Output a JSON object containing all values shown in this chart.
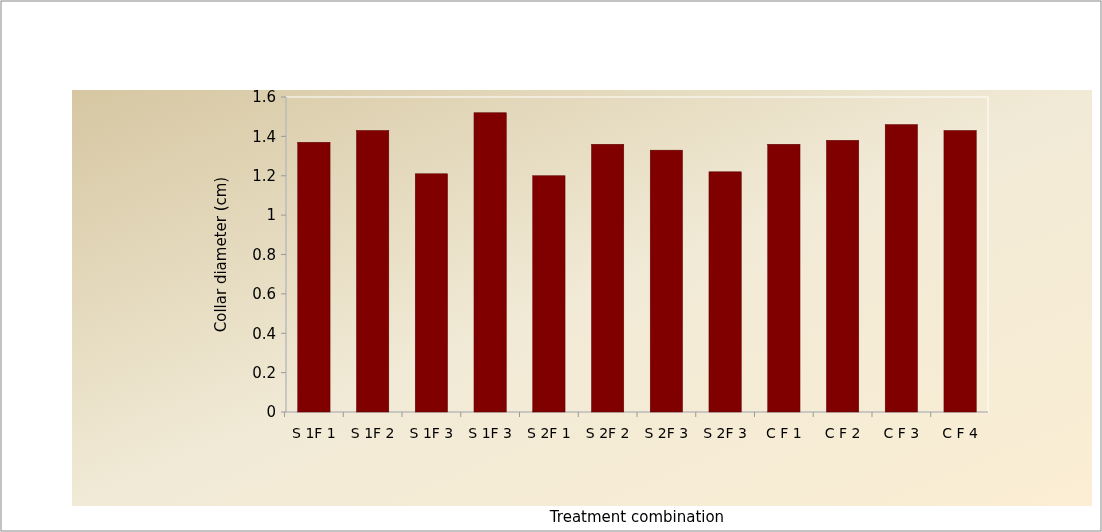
{
  "chart_data": {
    "type": "bar",
    "xlabel": "Treatment combination",
    "ylabel": "Collar diameter (cm)",
    "categories": [
      "S 1F 1",
      "S 1F 2",
      "S 1F 3",
      "S 1F 3",
      "S 2F 1",
      "S 2F 2",
      "S 2F 3",
      "S 2F 3",
      "C F 1",
      "C F 2",
      "C F 3",
      "C F 4"
    ],
    "values": [
      1.37,
      1.43,
      1.21,
      1.52,
      1.2,
      1.36,
      1.33,
      1.22,
      1.36,
      1.38,
      1.46,
      1.43
    ],
    "color": "#800000",
    "ylim": [
      0,
      1.6
    ],
    "yticks": [
      0,
      0.2,
      0.4,
      0.6,
      0.8,
      1,
      1.2,
      1.4,
      1.6
    ]
  }
}
